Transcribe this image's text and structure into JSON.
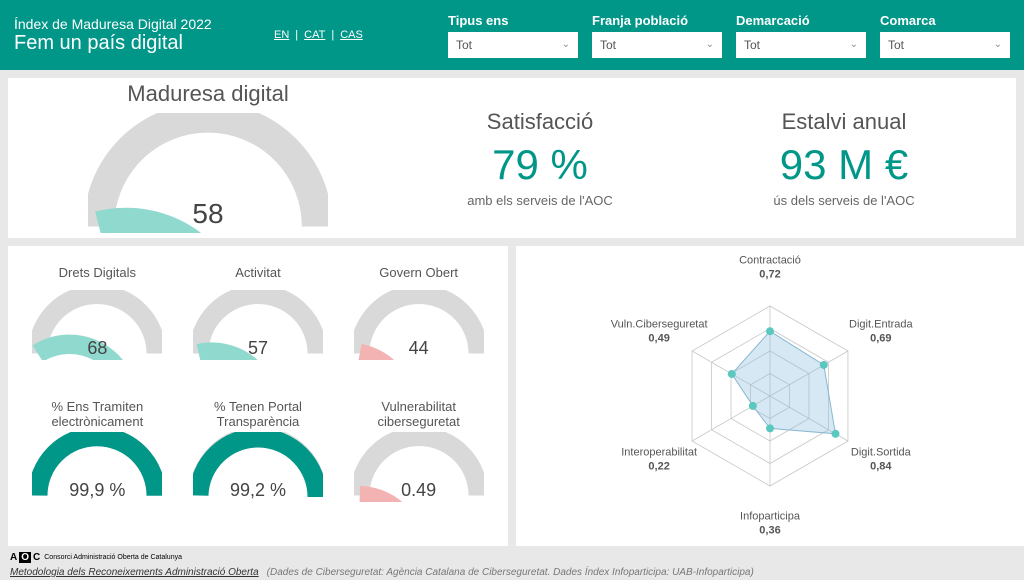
{
  "header": {
    "title_line1": "Índex de Maduresa Digital 2022",
    "title_line2": "Fem un país digital",
    "langs": [
      "EN",
      "CAT",
      "CAS"
    ],
    "filters": [
      {
        "label": "Tipus ens",
        "value": "Tot"
      },
      {
        "label": "Franja població",
        "value": "Tot"
      },
      {
        "label": "Demarcació",
        "value": "Tot"
      },
      {
        "label": "Comarca",
        "value": "Tot"
      }
    ],
    "bg_color": "#009688"
  },
  "main_gauge": {
    "title": "Maduresa digital",
    "value": 58,
    "display": "58",
    "fill_color": "#8fd9ce",
    "track_color": "#d9d9d9"
  },
  "satisfaction": {
    "title": "Satisfacció",
    "value": "79 %",
    "sub": "amb els serveis de l'AOC",
    "value_color": "#009688"
  },
  "savings": {
    "title": "Estalvi anual",
    "value": "93 M €",
    "sub": "ús dels serveis de l'AOC",
    "value_color": "#009688"
  },
  "mini_gauges": [
    {
      "title": "Drets Digitals",
      "value": 68,
      "display": "68",
      "fill": "#8fd9ce",
      "track": "#d9d9d9"
    },
    {
      "title": "Activitat",
      "value": 57,
      "display": "57",
      "fill": "#8fd9ce",
      "track": "#d9d9d9"
    },
    {
      "title": "Govern Obert",
      "value": 44,
      "display": "44",
      "fill": "#f4b3b3",
      "track": "#d9d9d9"
    },
    {
      "title": "% Ens Tramiten electrònicament",
      "value": 99.9,
      "display": "99,9 %",
      "fill": "#009688",
      "track": "#d9d9d9"
    },
    {
      "title": "% Tenen Portal Transparència",
      "value": 99.2,
      "display": "99,2 %",
      "fill": "#009688",
      "track": "#d9d9d9"
    },
    {
      "title": "Vulnerabilitat ciberseguretat",
      "value": 49,
      "display": "0.49",
      "fill": "#f4b3b3",
      "track": "#d9d9d9"
    }
  ],
  "radar": {
    "axes": [
      {
        "label": "Contractació",
        "value": 0.72,
        "display": "0,72"
      },
      {
        "label": "Digit.Entrada",
        "value": 0.69,
        "display": "0,69"
      },
      {
        "label": "Digit.Sortida",
        "value": 0.84,
        "display": "0,84"
      },
      {
        "label": "Infoparticipa",
        "value": 0.36,
        "display": "0,36"
      },
      {
        "label": "Interoperabilitat",
        "value": 0.22,
        "display": "0,22"
      },
      {
        "label": "Vuln.Ciberseguretat",
        "value": 0.49,
        "display": "0,49"
      }
    ],
    "rings": 4,
    "line_color": "#c7c7c7",
    "fill_color": "rgba(135,190,220,0.35)",
    "point_color": "#5bc8c0"
  },
  "footer": {
    "logo_text": "AOC",
    "logo_sub": "Consorci Administració Oberta de Catalunya",
    "link": "Metodologia dels Reconeixements Administració Oberta",
    "rest": "(Dades de Ciberseguretat: Agència Catalana de Ciberseguretat. Dades Índex Infoparticipa: UAB-Infoparticipa)"
  }
}
